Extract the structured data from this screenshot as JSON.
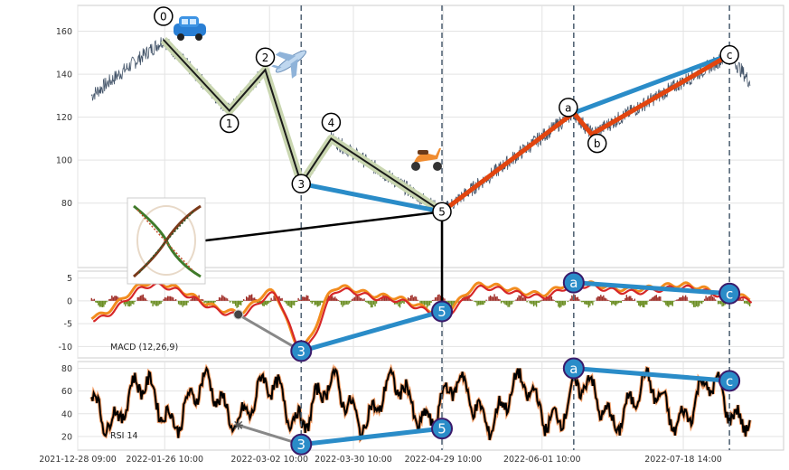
{
  "chart_data": [
    {
      "type": "line",
      "panel": "price",
      "ylim": [
        50,
        172
      ],
      "yticks": [
        80,
        100,
        120,
        140,
        160
      ],
      "grid": true,
      "wave_labels": [
        "0",
        "1",
        "2",
        "3",
        "4",
        "5",
        "a",
        "b",
        "c"
      ],
      "wave_points": [
        {
          "label": "0",
          "x": "2022-01-26",
          "y": 156
        },
        {
          "label": "1",
          "x": "2022-02-17",
          "y": 123
        },
        {
          "label": "2",
          "x": "2022-03-01",
          "y": 142
        },
        {
          "label": "3",
          "x": "2022-03-13",
          "y": 89
        },
        {
          "label": "4",
          "x": "2022-03-23",
          "y": 110
        },
        {
          "label": "5",
          "x": "2022-04-29",
          "y": 76
        },
        {
          "label": "a",
          "x": "2022-06-12",
          "y": 122
        },
        {
          "label": "b",
          "x": "2022-06-18",
          "y": 112
        },
        {
          "label": "c",
          "x": "2022-08-03",
          "y": 149
        }
      ],
      "vertical_markers": [
        "2022-03-13",
        "2022-04-29",
        "2022-06-12",
        "2022-08-03"
      ],
      "icons": [
        "car-icon",
        "airplane-icon",
        "scooter-icon"
      ]
    },
    {
      "type": "line",
      "panel": "macd",
      "label": "MACD (12,26,9)",
      "ylim": [
        -12.5,
        6.5
      ],
      "yticks": [
        5,
        0,
        -5,
        -10
      ],
      "grid": true,
      "divergence_points": [
        {
          "label": "3",
          "x": "2022-03-13",
          "y": -11
        },
        {
          "label": "5",
          "x": "2022-04-29",
          "y": -2.3
        },
        {
          "label": "a",
          "x": "2022-06-12",
          "y": 4
        },
        {
          "label": "c",
          "x": "2022-08-03",
          "y": 1.6
        }
      ],
      "colors": {
        "macd": "#f28c1e",
        "signal": "#d62728",
        "hist_pos": "#a0302a",
        "hist_neg": "#6b8e23"
      }
    },
    {
      "type": "line",
      "panel": "rsi",
      "label": "RSI 14",
      "ylim": [
        8,
        86
      ],
      "yticks": [
        80,
        60,
        40,
        20
      ],
      "grid": true,
      "divergence_points": [
        {
          "label": "3",
          "x": "2022-03-13",
          "y": 13
        },
        {
          "label": "5",
          "x": "2022-04-29",
          "y": 27
        },
        {
          "label": "a",
          "x": "2022-06-12",
          "y": 80
        },
        {
          "label": "c",
          "x": "2022-08-03",
          "y": 69
        }
      ]
    }
  ],
  "x_axis": {
    "tick_labels": [
      "2021-12-28 09:00",
      "2022-01-26 10:00",
      "2022-03-02 10:00",
      "2022-03-30 10:00",
      "2022-04-29 10:00",
      "2022-06-01 10:00",
      "2022-07-18 14:00"
    ]
  },
  "colors": {
    "wave_fill": "#c9d6b0",
    "impulse_line": "#1a1a1a",
    "blue_line": "#2a8cc8",
    "red_line": "#e2450f",
    "dash": "#556677",
    "bubble": "#2a8cc8",
    "bubble_edge": "#3a1a6a"
  }
}
